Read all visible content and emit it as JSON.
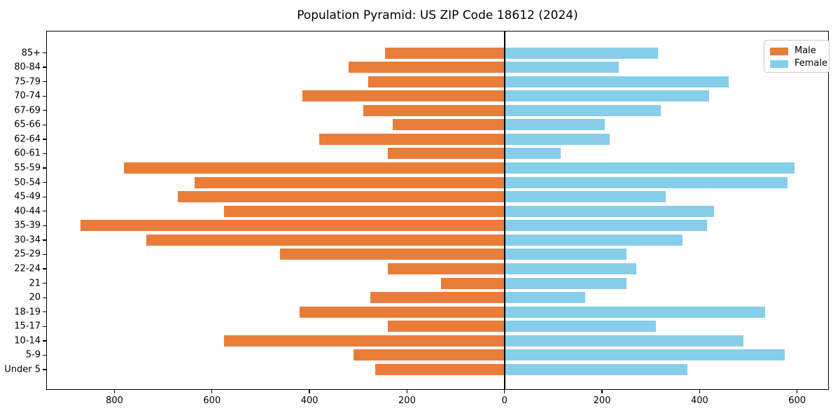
{
  "title": "Population Pyramid: US ZIP Code 18612 (2024)",
  "legend": {
    "male_label": "Male",
    "female_label": "Female"
  },
  "colors": {
    "male": "#e87d3a",
    "female": "#87ceeb",
    "axis": "#000000",
    "legend_border": "#cccccc"
  },
  "chart_data": {
    "type": "bar",
    "subtype": "population-pyramid",
    "orientation": "horizontal",
    "title": "Population Pyramid: US ZIP Code 18612 (2024)",
    "categories_top_to_bottom": [
      "85+",
      "80-84",
      "75-79",
      "70-74",
      "67-69",
      "65-66",
      "62-64",
      "60-61",
      "55-59",
      "50-54",
      "45-49",
      "40-44",
      "35-39",
      "30-34",
      "25-29",
      "22-24",
      "21",
      "20",
      "18-19",
      "15-17",
      "10-14",
      "5-9",
      "Under 5"
    ],
    "series": [
      {
        "name": "Male",
        "side": "left",
        "values": [
          245,
          320,
          280,
          415,
          290,
          230,
          380,
          240,
          780,
          635,
          670,
          575,
          870,
          735,
          460,
          240,
          130,
          275,
          420,
          240,
          575,
          310,
          265
        ]
      },
      {
        "name": "Female",
        "side": "right",
        "values": [
          315,
          235,
          460,
          420,
          320,
          205,
          215,
          115,
          595,
          580,
          330,
          430,
          415,
          365,
          250,
          270,
          250,
          165,
          535,
          310,
          490,
          575,
          375
        ]
      }
    ],
    "x_ticks": [
      -800,
      -600,
      -400,
      -200,
      0,
      200,
      400,
      600
    ],
    "x_tick_labels": [
      "800",
      "600",
      "400",
      "200",
      "0",
      "200",
      "400",
      "600"
    ],
    "xlim": [
      -940,
      665
    ],
    "grid": false,
    "zero_line": true,
    "legend_position": "upper right"
  }
}
